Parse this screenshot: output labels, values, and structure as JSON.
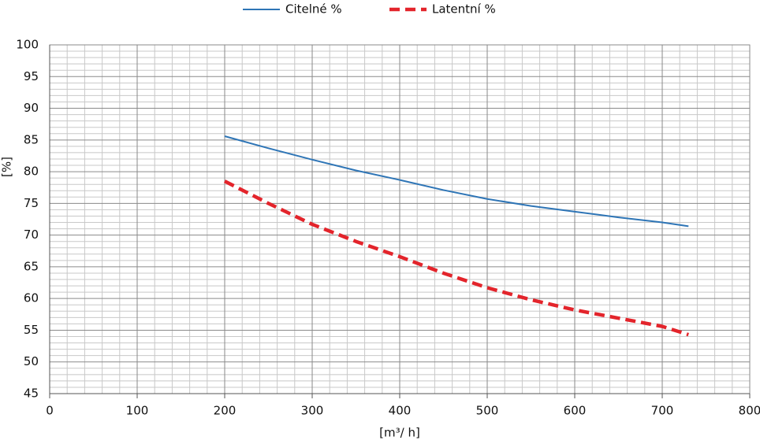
{
  "chart_data": {
    "type": "line",
    "xlabel": "[m³/ h]",
    "ylabel": "[%]",
    "x": [
      200,
      250,
      300,
      350,
      400,
      450,
      500,
      550,
      600,
      650,
      700,
      730
    ],
    "series": [
      {
        "name": "Citelné %",
        "color": "#2e75b6",
        "dashed": false,
        "values": [
          85.6,
          83.7,
          81.9,
          80.2,
          78.7,
          77.1,
          75.7,
          74.6,
          73.7,
          72.8,
          72.0,
          71.4
        ]
      },
      {
        "name": "Latentní %",
        "color": "#e3242b",
        "dashed": true,
        "values": [
          78.5,
          75.0,
          71.7,
          69.0,
          66.6,
          64.0,
          61.7,
          59.8,
          58.2,
          56.9,
          55.6,
          54.3
        ]
      }
    ],
    "xlim": [
      0,
      800
    ],
    "xticks": [
      0,
      100,
      200,
      300,
      400,
      500,
      600,
      700,
      800
    ],
    "ylim": [
      45,
      100
    ],
    "yticks": [
      45,
      50,
      55,
      60,
      65,
      70,
      75,
      80,
      85,
      90,
      95,
      100
    ],
    "minor_xticks": [
      20,
      40,
      60,
      80,
      120,
      140,
      160,
      180,
      220,
      240,
      260,
      280,
      320,
      340,
      360,
      380,
      420,
      440,
      460,
      480,
      520,
      540,
      560,
      580,
      620,
      640,
      660,
      680,
      720,
      740,
      760,
      780
    ],
    "minor_yticks": [
      46,
      47,
      48,
      49,
      51,
      52,
      53,
      54,
      56,
      57,
      58,
      59,
      61,
      62,
      63,
      64,
      66,
      67,
      68,
      69,
      71,
      72,
      73,
      74,
      76,
      77,
      78,
      79,
      81,
      82,
      83,
      84,
      86,
      87,
      88,
      89,
      91,
      92,
      93,
      94,
      96,
      97,
      98,
      99
    ],
    "grid": true,
    "legend": "top"
  }
}
